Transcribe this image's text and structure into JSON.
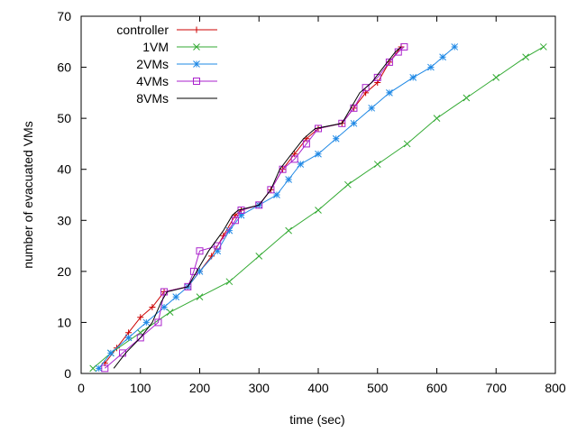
{
  "chart_data": {
    "type": "line",
    "xlabel": "time (sec)",
    "ylabel": "number of evacuated VMs",
    "xlim": [
      0,
      800
    ],
    "ylim": [
      0,
      70
    ],
    "xticks": [
      0,
      100,
      200,
      300,
      400,
      500,
      600,
      700,
      800
    ],
    "yticks": [
      0,
      10,
      20,
      30,
      40,
      50,
      60,
      70
    ],
    "grid": false,
    "legend_position": "top-left",
    "series": [
      {
        "name": "controller",
        "color": "#cc0000",
        "marker": "plus",
        "x": [
          40,
          60,
          80,
          100,
          120,
          140,
          180,
          200,
          220,
          240,
          260,
          270,
          300,
          320,
          340,
          360,
          380,
          400,
          440,
          460,
          480,
          500,
          520,
          540
        ],
        "y": [
          2,
          5,
          8,
          11,
          13,
          16,
          17,
          20,
          23,
          27,
          31,
          32,
          33,
          36,
          40,
          43,
          46,
          48,
          49,
          52,
          55,
          57,
          61,
          64
        ]
      },
      {
        "name": "1VM",
        "color": "#33aa33",
        "marker": "x",
        "x": [
          20,
          50,
          100,
          150,
          200,
          250,
          300,
          350,
          400,
          450,
          500,
          550,
          600,
          650,
          700,
          750,
          780
        ],
        "y": [
          1,
          4,
          8,
          12,
          15,
          18,
          23,
          28,
          32,
          37,
          41,
          45,
          50,
          54,
          58,
          62,
          64
        ]
      },
      {
        "name": "2VMs",
        "color": "#1e88e5",
        "marker": "star",
        "x": [
          30,
          50,
          80,
          110,
          140,
          160,
          180,
          200,
          230,
          250,
          270,
          300,
          330,
          350,
          370,
          400,
          430,
          460,
          490,
          520,
          560,
          590,
          610,
          630
        ],
        "y": [
          1,
          4,
          7,
          10,
          13,
          15,
          17,
          20,
          24,
          28,
          31,
          33,
          35,
          38,
          41,
          43,
          46,
          49,
          52,
          55,
          58,
          60,
          62,
          64
        ]
      },
      {
        "name": "4VMs",
        "color": "#aa22cc",
        "marker": "square",
        "x": [
          40,
          70,
          100,
          130,
          140,
          180,
          190,
          200,
          230,
          260,
          270,
          300,
          320,
          340,
          360,
          380,
          400,
          440,
          460,
          480,
          500,
          520,
          535,
          545
        ],
        "y": [
          1,
          4,
          7,
          10,
          16,
          17,
          20,
          24,
          25,
          30,
          32,
          33,
          36,
          40,
          42,
          45,
          48,
          49,
          52,
          56,
          58,
          61,
          63,
          64
        ]
      },
      {
        "name": "8VMs",
        "color": "#000000",
        "marker": "none",
        "x": [
          55,
          75,
          100,
          120,
          135,
          145,
          180,
          195,
          215,
          240,
          255,
          265,
          300,
          320,
          335,
          355,
          375,
          395,
          440,
          455,
          470,
          490,
          510,
          530,
          540
        ],
        "y": [
          1,
          4,
          7,
          10,
          14,
          16,
          17,
          20,
          24,
          28,
          31,
          32,
          33,
          36,
          40,
          43,
          46,
          48,
          49,
          52,
          55,
          57,
          60,
          63,
          64
        ]
      }
    ]
  }
}
